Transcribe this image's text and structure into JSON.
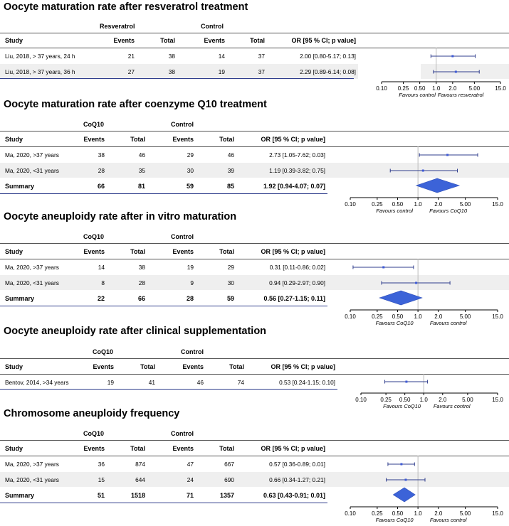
{
  "headers": {
    "study": "Study",
    "events": "Events",
    "total": "Total",
    "or": "OR [95 % CI; p value]"
  },
  "tick_labels": [
    "0.10",
    "0.25",
    "0.50",
    "1.0",
    "2.0",
    "5.00",
    "15.0"
  ],
  "colors": {
    "ci_line": "#2f3d8c",
    "marker": "#3f5bd6",
    "diamond": "#3c63d8",
    "ref_line": "#bbbbbb",
    "row_shade": "#efefef",
    "summary_rule": "#2f3d8c"
  },
  "chart_data": [
    {
      "type": "forest",
      "title": "Oocyte maturation rate after resveratrol treatment",
      "group1": "Resveratrol",
      "group2": "Control",
      "favours_left": "Favours control",
      "favours_right": "Favours resveratrol",
      "xscale": "log",
      "xlim": [
        0.1,
        15
      ],
      "ticks": [
        0.1,
        0.25,
        0.5,
        1,
        2,
        5,
        15
      ],
      "rows": [
        {
          "study": "Liu, 2018, > 37 years, 24 h",
          "e1": "21",
          "t1": "38",
          "e2": "14",
          "t2": "37",
          "ci": "2.00 [0.80-5.17; 0.13]",
          "or": 2.0,
          "lo": 0.8,
          "hi": 5.17
        },
        {
          "study": "Liu, 2018, > 37 years, 36 h",
          "e1": "27",
          "t1": "38",
          "e2": "19",
          "t2": "37",
          "ci": "2.29 [0.89-6.14; 0.08]",
          "or": 2.29,
          "lo": 0.89,
          "hi": 6.14
        }
      ]
    },
    {
      "type": "forest",
      "title": "Oocyte maturation rate after coenzyme Q10 treatment",
      "group1": "CoQ10",
      "group2": "Control",
      "favours_left": "Favours control",
      "favours_right": "Favours CoQ10",
      "xscale": "log",
      "xlim": [
        0.1,
        15
      ],
      "ticks": [
        0.1,
        0.25,
        0.5,
        1,
        2,
        5,
        15
      ],
      "rows": [
        {
          "study": "Ma, 2020, >37 years",
          "e1": "38",
          "t1": "46",
          "e2": "29",
          "t2": "46",
          "ci": "2.73 [1.05-7.62; 0.03]",
          "or": 2.73,
          "lo": 1.05,
          "hi": 7.62
        },
        {
          "study": "Ma, 2020, <31 years",
          "e1": "28",
          "t1": "35",
          "e2": "30",
          "t2": "39",
          "ci": "1.19 [0.39-3.82; 0.75]",
          "or": 1.19,
          "lo": 0.39,
          "hi": 3.82
        }
      ],
      "summary": {
        "label": "Summary",
        "e1": "66",
        "t1": "81",
        "e2": "59",
        "t2": "85",
        "ci": "1.92 [0.94-4.07; 0.07]",
        "or": 1.92,
        "lo": 0.94,
        "hi": 4.07
      }
    },
    {
      "type": "forest",
      "title": "Oocyte aneuploidy rate after in vitro maturation",
      "group1": "CoQ10",
      "group2": "Control",
      "favours_left": "Favours CoQ10",
      "favours_right": "Favours control",
      "xscale": "log",
      "xlim": [
        0.1,
        15
      ],
      "ticks": [
        0.1,
        0.25,
        0.5,
        1,
        2,
        5,
        15
      ],
      "rows": [
        {
          "study": "Ma, 2020, >37 years",
          "e1": "14",
          "t1": "38",
          "e2": "19",
          "t2": "29",
          "ci": "0.31 [0.11-0.86; 0.02]",
          "or": 0.31,
          "lo": 0.11,
          "hi": 0.86
        },
        {
          "study": "Ma, 2020, <31 years",
          "e1": "8",
          "t1": "28",
          "e2": "9",
          "t2": "30",
          "ci": "0.94 [0.29-2.97; 0.90]",
          "or": 0.94,
          "lo": 0.29,
          "hi": 2.97
        }
      ],
      "summary": {
        "label": "Summary",
        "e1": "22",
        "t1": "66",
        "e2": "28",
        "t2": "59",
        "ci": "0.56 [0.27-1.15; 0.11]",
        "or": 0.56,
        "lo": 0.27,
        "hi": 1.15
      }
    },
    {
      "type": "forest",
      "title": "Oocyte aneuploidy rate after clinical supplementation",
      "group1": "CoQ10",
      "group2": "Control",
      "favours_left": "Favours CoQ10",
      "favours_right": "Favours control",
      "xscale": "log",
      "xlim": [
        0.1,
        15
      ],
      "ticks": [
        0.1,
        0.25,
        0.5,
        1,
        2,
        5,
        15
      ],
      "rows": [
        {
          "study": "Bentov, 2014, >34 years",
          "e1": "19",
          "t1": "41",
          "e2": "46",
          "t2": "74",
          "ci": "0.53 [0.24-1.15; 0.10]",
          "or": 0.53,
          "lo": 0.24,
          "hi": 1.15
        }
      ]
    },
    {
      "type": "forest",
      "title": "Chromosome aneuploidy frequency",
      "group1": "CoQ10",
      "group2": "Control",
      "favours_left": "Favours CoQ10",
      "favours_right": "Favours control",
      "xscale": "log",
      "xlim": [
        0.1,
        15
      ],
      "ticks": [
        0.1,
        0.25,
        0.5,
        1,
        2,
        5,
        15
      ],
      "rows": [
        {
          "study": "Ma, 2020, >37 years",
          "e1": "36",
          "t1": "874",
          "e2": "47",
          "t2": "667",
          "ci": "0.57 [0.36-0.89; 0.01]",
          "or": 0.57,
          "lo": 0.36,
          "hi": 0.89
        },
        {
          "study": "Ma, 2020, <31 years",
          "e1": "15",
          "t1": "644",
          "e2": "24",
          "t2": "690",
          "ci": "0.66 [0.34-1.27; 0.21]",
          "or": 0.66,
          "lo": 0.34,
          "hi": 1.27
        }
      ],
      "summary": {
        "label": "Summary",
        "e1": "51",
        "t1": "1518",
        "e2": "71",
        "t2": "1357",
        "ci": "0.63 [0.43-0.91; 0.01]",
        "or": 0.63,
        "lo": 0.43,
        "hi": 0.91
      }
    }
  ]
}
